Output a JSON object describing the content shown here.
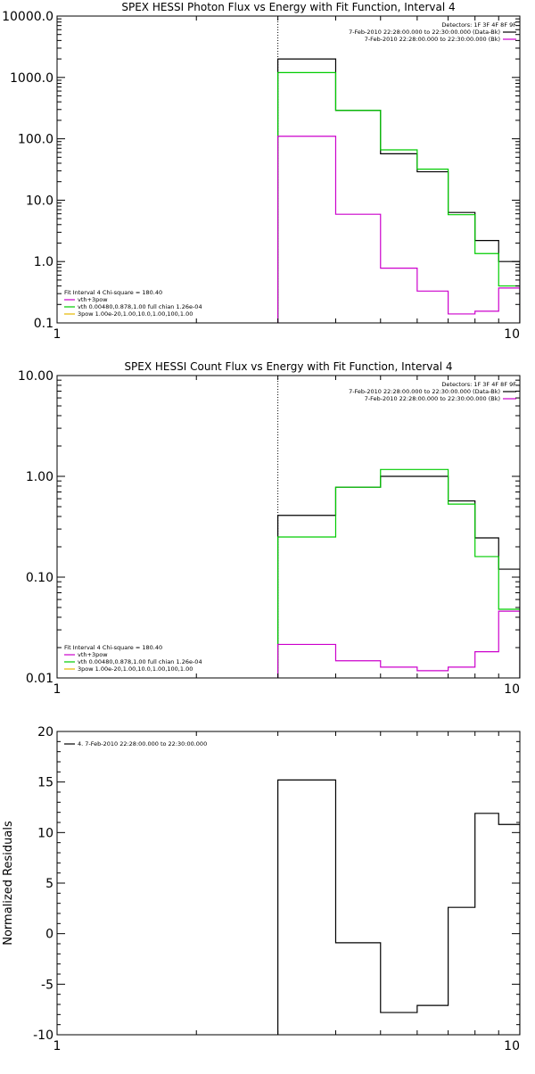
{
  "chart_data": [
    {
      "type": "line",
      "title": "SPEX HESSI Photon Flux vs Energy with Fit Function, Interval 4",
      "xlabel": "",
      "ylabel": "",
      "xscale": "log",
      "yscale": "log",
      "xlim": [
        1,
        10
      ],
      "ylim": [
        0.1,
        10000.0
      ],
      "xticks": [
        {
          "v": 1,
          "label": "1"
        },
        {
          "v": 10,
          "label": "10"
        }
      ],
      "yticks": [
        {
          "v": 0.1,
          "label": "0.1"
        },
        {
          "v": 1,
          "label": "1.0"
        },
        {
          "v": 10,
          "label": "10.0"
        },
        {
          "v": 100,
          "label": "100.0"
        },
        {
          "v": 1000,
          "label": "1000.0"
        },
        {
          "v": 10000,
          "label": "10000.0"
        }
      ],
      "dotted_x": 3.0,
      "bin_edges": [
        3.0,
        4.0,
        5.0,
        6.0,
        7.0,
        8.0,
        9.0,
        10.0
      ],
      "series": [
        {
          "color": "#000000",
          "values": [
            2000,
            290,
            57,
            29,
            6.3,
            2.2,
            1.0
          ]
        },
        {
          "color": "#00cc00",
          "values": [
            1200,
            290,
            66,
            32,
            5.8,
            1.35,
            0.4
          ]
        },
        {
          "color": "#cc00cc",
          "values": [
            110,
            5.9,
            0.78,
            0.33,
            0.14,
            0.155,
            0.37
          ]
        }
      ],
      "legend_right": {
        "position": "top-right",
        "header": "Detectors: 1F 3F 4F 8F 9F",
        "entries": [
          {
            "text": "7-Feb-2010 22:28:00.000 to 22:30:00.000 (Data-Bk)",
            "color": "#000000"
          },
          {
            "text": "7-Feb-2010 22:28:00.000 to 22:30:00.000 (Bk)",
            "color": "#cc00cc"
          }
        ]
      },
      "legend_left": {
        "position": "bottom-left",
        "header": "Fit Interval 4   Chi-square = 180.40",
        "entries": [
          {
            "text": "vth+3pow",
            "color": "#cc00cc"
          },
          {
            "text": "vth 0.00480,0.878,1.00   full chian 1.26e-04",
            "color": "#00cc00"
          },
          {
            "text": "3pow 1.00e-20,1.00,10.0,1.00,100,1.00",
            "color": "#e6b800"
          }
        ]
      }
    },
    {
      "type": "line",
      "title": "SPEX HESSI Count Flux vs Energy with Fit Function, Interval 4",
      "xlabel": "",
      "ylabel": "",
      "xscale": "log",
      "yscale": "log",
      "xlim": [
        1,
        10
      ],
      "ylim": [
        0.01,
        10.0
      ],
      "xticks": [
        {
          "v": 1,
          "label": "1"
        },
        {
          "v": 10,
          "label": "10"
        }
      ],
      "yticks": [
        {
          "v": 0.01,
          "label": "0.01"
        },
        {
          "v": 0.1,
          "label": "0.10"
        },
        {
          "v": 1,
          "label": "1.00"
        },
        {
          "v": 10,
          "label": "10.00"
        }
      ],
      "dotted_x": 3.0,
      "bin_edges": [
        3.0,
        4.0,
        5.0,
        6.0,
        7.0,
        8.0,
        9.0,
        10.0
      ],
      "series": [
        {
          "color": "#000000",
          "values": [
            0.41,
            0.78,
            1.0,
            1.0,
            0.57,
            0.245,
            0.12
          ]
        },
        {
          "color": "#00cc00",
          "values": [
            0.25,
            0.78,
            1.17,
            1.17,
            0.53,
            0.16,
            0.048
          ]
        },
        {
          "color": "#cc00cc",
          "values": [
            0.0215,
            0.0148,
            0.0128,
            0.0118,
            0.0128,
            0.0182,
            0.046
          ]
        }
      ],
      "legend_right": {
        "position": "top-right",
        "header": "Detectors: 1F 3F 4F 8F 9F",
        "entries": [
          {
            "text": "7-Feb-2010 22:28:00.000 to 22:30:00.000 (Data-Bk)",
            "color": "#000000"
          },
          {
            "text": "7-Feb-2010 22:28:00.000 to 22:30:00.000 (Bk)",
            "color": "#cc00cc"
          }
        ]
      },
      "legend_left": {
        "position": "bottom-left",
        "header": "Fit Interval 4   Chi-square = 180.40",
        "entries": [
          {
            "text": "vth+3pow",
            "color": "#cc00cc"
          },
          {
            "text": "vth 0.00480,0.878,1.00   full chian 1.26e-04",
            "color": "#00cc00"
          },
          {
            "text": "3pow 1.00e-20,1.00,10.0,1.00,100,1.00",
            "color": "#e6b800"
          }
        ]
      }
    },
    {
      "type": "line",
      "title": "",
      "xlabel": "",
      "ylabel": "Normalized Residuals",
      "xscale": "log",
      "yscale": "linear",
      "xlim": [
        1,
        10
      ],
      "ylim": [
        -10,
        20
      ],
      "xticks": [
        {
          "v": 1,
          "label": "1"
        },
        {
          "v": 10,
          "label": "10"
        }
      ],
      "yticks": [
        {
          "v": -10,
          "label": "-10"
        },
        {
          "v": -5,
          "label": "-5"
        },
        {
          "v": 0,
          "label": "0"
        },
        {
          "v": 5,
          "label": "5"
        },
        {
          "v": 10,
          "label": "10"
        },
        {
          "v": 15,
          "label": "15"
        },
        {
          "v": 20,
          "label": "20"
        }
      ],
      "bin_edges": [
        3.0,
        4.0,
        5.0,
        6.0,
        7.0,
        8.0,
        9.0,
        10.0
      ],
      "series": [
        {
          "color": "#000000",
          "values": [
            15.2,
            -0.9,
            -7.8,
            -7.1,
            2.6,
            11.9,
            10.8
          ]
        }
      ],
      "legend_left": {
        "position": "top-left",
        "header": "",
        "entries": [
          {
            "text": "4. 7-Feb-2010 22:28:00.000 to 22:30:00.000",
            "color": "#000000"
          }
        ]
      }
    }
  ]
}
